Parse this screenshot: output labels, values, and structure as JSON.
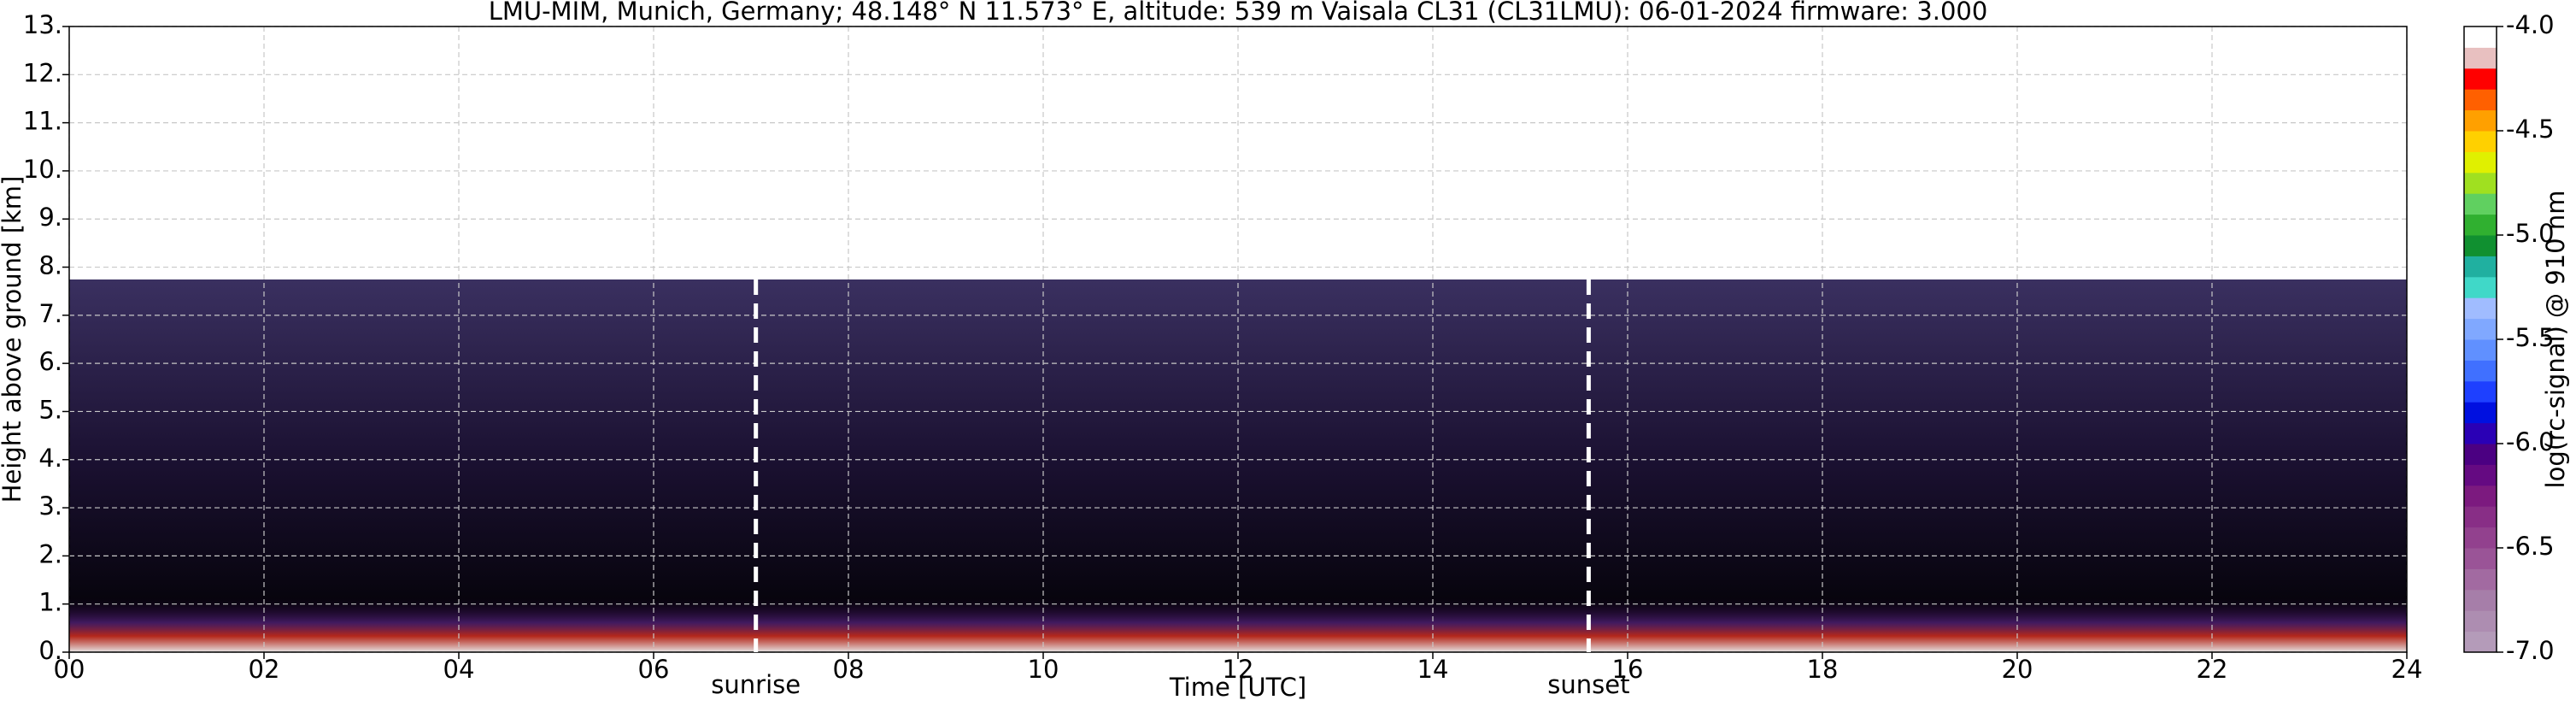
{
  "chart_data": {
    "type": "heatmap",
    "title": "LMU-MIM, Munich, Germany; 48.148° N 11.573° E, altitude: 539 m    Vaisala CL31 (CL31LMU): 06-01-2024    firmware: 3.000",
    "x_label": "Time [UTC]",
    "y_label": "Height above ground [km]",
    "xlim": [
      0,
      24
    ],
    "xticks": [
      {
        "value": 0,
        "label": "00"
      },
      {
        "value": 2,
        "label": "02"
      },
      {
        "value": 4,
        "label": "04"
      },
      {
        "value": 6,
        "label": "06"
      },
      {
        "value": 8,
        "label": "08"
      },
      {
        "value": 10,
        "label": "10"
      },
      {
        "value": 12,
        "label": "12"
      },
      {
        "value": 14,
        "label": "14"
      },
      {
        "value": 16,
        "label": "16"
      },
      {
        "value": 18,
        "label": "18"
      },
      {
        "value": 20,
        "label": "20"
      },
      {
        "value": 22,
        "label": "22"
      },
      {
        "value": 24,
        "label": "24"
      }
    ],
    "ylim": [
      0,
      13
    ],
    "yticks": [
      {
        "value": 0,
        "label": "0."
      },
      {
        "value": 1,
        "label": "1."
      },
      {
        "value": 2,
        "label": "2."
      },
      {
        "value": 3,
        "label": "3."
      },
      {
        "value": 4,
        "label": "4."
      },
      {
        "value": 5,
        "label": "5."
      },
      {
        "value": 6,
        "label": "6."
      },
      {
        "value": 7,
        "label": "7."
      },
      {
        "value": 8,
        "label": "8."
      },
      {
        "value": 9,
        "label": "9."
      },
      {
        "value": 10,
        "label": "10."
      },
      {
        "value": 11,
        "label": "11."
      },
      {
        "value": 12,
        "label": "12."
      },
      {
        "value": 13,
        "label": "13."
      }
    ],
    "grid": true,
    "annotations": [
      {
        "text": "sunrise",
        "x": 7.05
      },
      {
        "text": "sunset",
        "x": 15.6
      }
    ],
    "colorbar": {
      "label": "log(rc-signal) @ 910 nm",
      "lim": [
        -7,
        -4
      ],
      "ticks": [
        {
          "value": -7,
          "label": "-7.0"
        },
        {
          "value": -6.5,
          "label": "-6.5"
        },
        {
          "value": -6,
          "label": "-6.0"
        },
        {
          "value": -5.5,
          "label": "-5.5"
        },
        {
          "value": -5,
          "label": "-5.0"
        },
        {
          "value": -4.5,
          "label": "-4.5"
        },
        {
          "value": -4,
          "label": "-4.0"
        }
      ],
      "colors": [
        "#b49bb9",
        "#ad8db1",
        "#a67ea9",
        "#a26aa1",
        "#9a5497",
        "#92418e",
        "#882e86",
        "#7c1a7f",
        "#650a82",
        "#4b0082",
        "#2a00b5",
        "#0010e0",
        "#1e40ff",
        "#4070ff",
        "#6090ff",
        "#80a8ff",
        "#a0bcff",
        "#40d8c8",
        "#20b0a0",
        "#109030",
        "#30b030",
        "#60d060",
        "#a0e020",
        "#e0f000",
        "#ffd000",
        "#ffa000",
        "#ff6000",
        "#ff0000",
        "#e8c0c0",
        "#ffffff"
      ]
    }
  }
}
